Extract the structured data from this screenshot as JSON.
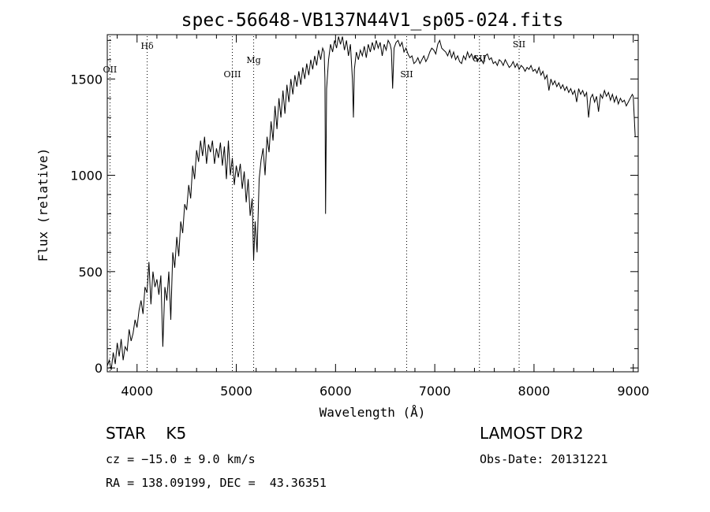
{
  "chart_data": {
    "type": "line",
    "title": "spec-56648-VB137N44V1_sp05-024.fits",
    "xlabel": "Wavelength (Å)",
    "ylabel": "Flux (relative)",
    "xlim": [
      3700,
      9050
    ],
    "ylim": [
      -20,
      1730
    ],
    "xticks": [
      4000,
      5000,
      6000,
      7000,
      8000,
      9000
    ],
    "yticks": [
      0,
      500,
      1000,
      1500
    ],
    "grid": false,
    "series": [
      {
        "x": [
          3700,
          3720,
          3740,
          3760,
          3780,
          3800,
          3820,
          3840,
          3860,
          3880,
          3900,
          3920,
          3940,
          3960,
          3980,
          4000,
          4020,
          4040,
          4060,
          4080,
          4100,
          4120,
          4140,
          4160,
          4180,
          4200,
          4220,
          4240,
          4260,
          4280,
          4300,
          4320,
          4340,
          4360,
          4380,
          4400,
          4420,
          4440,
          4460,
          4480,
          4500,
          4520,
          4540,
          4560,
          4580,
          4600,
          4620,
          4640,
          4660,
          4680,
          4700,
          4720,
          4740,
          4760,
          4780,
          4800,
          4820,
          4840,
          4860,
          4880,
          4900,
          4920,
          4940,
          4960,
          4980,
          5000,
          5020,
          5040,
          5060,
          5080,
          5100,
          5120,
          5140,
          5160,
          5175,
          5190,
          5210,
          5230,
          5250,
          5270,
          5290,
          5310,
          5330,
          5350,
          5370,
          5390,
          5410,
          5430,
          5450,
          5470,
          5490,
          5510,
          5530,
          5550,
          5570,
          5590,
          5610,
          5630,
          5650,
          5670,
          5690,
          5710,
          5730,
          5750,
          5770,
          5790,
          5810,
          5830,
          5850,
          5870,
          5885,
          5893,
          5900,
          5910,
          5930,
          5950,
          5970,
          5990,
          6010,
          6030,
          6050,
          6070,
          6090,
          6110,
          6130,
          6150,
          6170,
          6180,
          6190,
          6210,
          6230,
          6250,
          6270,
          6290,
          6310,
          6330,
          6350,
          6370,
          6390,
          6410,
          6430,
          6450,
          6470,
          6490,
          6510,
          6530,
          6550,
          6563,
          6575,
          6590,
          6610,
          6630,
          6650,
          6670,
          6690,
          6710,
          6730,
          6750,
          6770,
          6790,
          6810,
          6830,
          6850,
          6870,
          6890,
          6910,
          6930,
          6950,
          6970,
          6990,
          7010,
          7030,
          7050,
          7070,
          7090,
          7110,
          7130,
          7150,
          7170,
          7190,
          7210,
          7230,
          7250,
          7270,
          7290,
          7310,
          7330,
          7350,
          7370,
          7390,
          7410,
          7430,
          7450,
          7470,
          7490,
          7510,
          7530,
          7550,
          7570,
          7590,
          7610,
          7630,
          7650,
          7670,
          7690,
          7710,
          7730,
          7750,
          7770,
          7790,
          7810,
          7830,
          7850,
          7870,
          7890,
          7910,
          7930,
          7950,
          7970,
          7990,
          8010,
          8030,
          8050,
          8070,
          8090,
          8110,
          8130,
          8150,
          8170,
          8190,
          8210,
          8230,
          8250,
          8270,
          8290,
          8310,
          8330,
          8350,
          8370,
          8390,
          8410,
          8430,
          8450,
          8470,
          8490,
          8510,
          8530,
          8550,
          8570,
          8590,
          8610,
          8630,
          8650,
          8670,
          8690,
          8710,
          8730,
          8750,
          8770,
          8790,
          8810,
          8830,
          8850,
          8870,
          8890,
          8910,
          8930,
          8950,
          8970,
          8990,
          9000,
          9010,
          9020
        ],
        "values": [
          10,
          40,
          -10,
          80,
          20,
          130,
          60,
          150,
          40,
          110,
          90,
          200,
          140,
          180,
          250,
          210,
          300,
          350,
          280,
          420,
          390,
          550,
          330,
          500,
          420,
          460,
          380,
          480,
          110,
          420,
          350,
          500,
          250,
          600,
          520,
          680,
          580,
          760,
          700,
          850,
          820,
          950,
          880,
          1050,
          980,
          1130,
          1070,
          1180,
          1100,
          1200,
          1060,
          1160,
          1120,
          1180,
          1060,
          1140,
          1090,
          1170,
          1050,
          1150,
          980,
          1180,
          1000,
          1090,
          950,
          1050,
          990,
          1060,
          930,
          1020,
          860,
          980,
          790,
          880,
          560,
          760,
          600,
          980,
          1080,
          1140,
          1000,
          1200,
          1120,
          1280,
          1180,
          1360,
          1240,
          1400,
          1300,
          1440,
          1320,
          1470,
          1380,
          1500,
          1420,
          1520,
          1460,
          1540,
          1470,
          1560,
          1500,
          1580,
          1520,
          1600,
          1550,
          1620,
          1570,
          1650,
          1600,
          1660,
          1640,
          1500,
          800,
          1450,
          1600,
          1680,
          1640,
          1700,
          1660,
          1720,
          1680,
          1720,
          1650,
          1700,
          1620,
          1680,
          1500,
          1300,
          1550,
          1640,
          1600,
          1650,
          1620,
          1670,
          1610,
          1680,
          1640,
          1690,
          1650,
          1700,
          1660,
          1690,
          1620,
          1680,
          1650,
          1700,
          1680,
          1650,
          1450,
          1660,
          1690,
          1700,
          1670,
          1690,
          1640,
          1660,
          1630,
          1610,
          1620,
          1580,
          1590,
          1610,
          1580,
          1600,
          1620,
          1590,
          1610,
          1640,
          1660,
          1650,
          1630,
          1680,
          1700,
          1660,
          1650,
          1640,
          1620,
          1650,
          1610,
          1640,
          1600,
          1620,
          1590,
          1580,
          1620,
          1600,
          1640,
          1610,
          1630,
          1600,
          1620,
          1590,
          1610,
          1600,
          1580,
          1620,
          1630,
          1600,
          1610,
          1580,
          1590,
          1570,
          1600,
          1590,
          1570,
          1600,
          1580,
          1560,
          1570,
          1590,
          1560,
          1580,
          1550,
          1570,
          1560,
          1540,
          1560,
          1550,
          1570,
          1540,
          1550,
          1530,
          1560,
          1520,
          1540,
          1500,
          1520,
          1440,
          1500,
          1470,
          1490,
          1460,
          1480,
          1450,
          1470,
          1440,
          1460,
          1430,
          1450,
          1420,
          1440,
          1380,
          1450,
          1420,
          1440,
          1410,
          1430,
          1300,
          1400,
          1420,
          1380,
          1410,
          1330,
          1420,
          1400,
          1440,
          1410,
          1430,
          1390,
          1420,
          1380,
          1410,
          1370,
          1400,
          1380,
          1390,
          1360,
          1380,
          1400,
          1420,
          1410,
          1300,
          1200
        ]
      }
    ],
    "lines": [
      {
        "label": "OII",
        "x": 3727
      },
      {
        "label": "Hδ",
        "x": 4102
      },
      {
        "label": "OIII",
        "x": 4960
      },
      {
        "label": "Mg",
        "x": 5175
      },
      {
        "label": "SII",
        "x": 6717
      },
      {
        "label": "SII",
        "x": 7450
      },
      {
        "label": "SII",
        "x": 7850
      }
    ]
  },
  "info": {
    "class_label": "STAR    K5",
    "survey": "LAMOST DR2",
    "cz": "cz = −15.0 ± 9.0 km/s",
    "obs_date": "Obs-Date: 20131221",
    "radec": "RA = 138.09199, DEC =  43.36351"
  }
}
